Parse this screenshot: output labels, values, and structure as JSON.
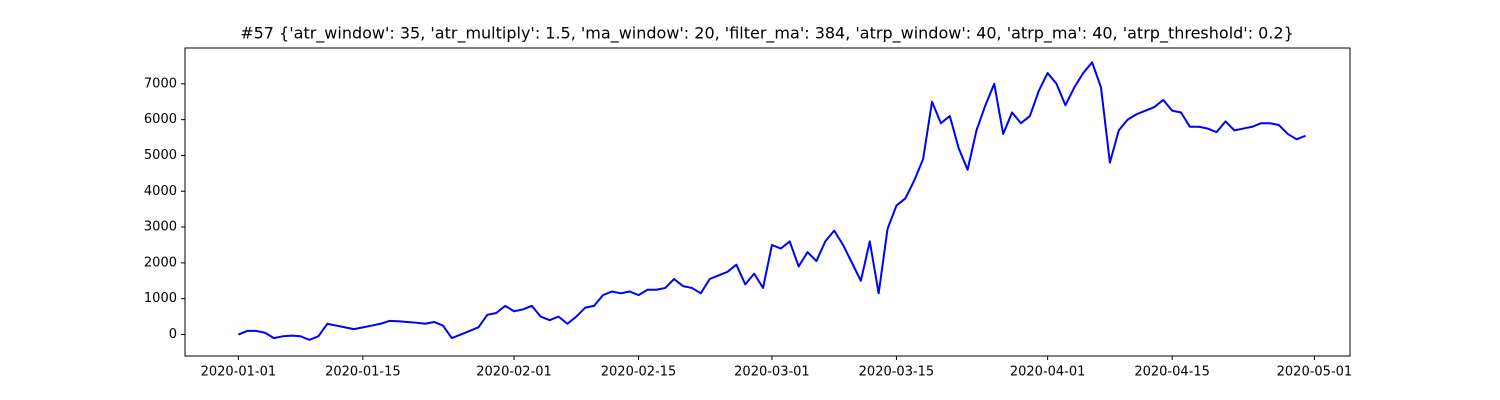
{
  "chart_data": {
    "type": "line",
    "title": "#57 {'atr_window': 35, 'atr_multiply': 1.5, 'ma_window': 20, 'filter_ma': 384, 'atrp_window': 40, 'atrp_ma': 40, 'atrp_threshold': 0.2}",
    "x": [
      "2020-01-01",
      "2020-01-02",
      "2020-01-03",
      "2020-01-04",
      "2020-01-05",
      "2020-01-06",
      "2020-01-07",
      "2020-01-08",
      "2020-01-09",
      "2020-01-10",
      "2020-01-11",
      "2020-01-12",
      "2020-01-13",
      "2020-01-14",
      "2020-01-15",
      "2020-01-16",
      "2020-01-17",
      "2020-01-18",
      "2020-01-19",
      "2020-01-20",
      "2020-01-21",
      "2020-01-22",
      "2020-01-23",
      "2020-01-24",
      "2020-01-25",
      "2020-01-26",
      "2020-01-27",
      "2020-01-28",
      "2020-01-29",
      "2020-01-30",
      "2020-01-31",
      "2020-02-01",
      "2020-02-02",
      "2020-02-03",
      "2020-02-04",
      "2020-02-05",
      "2020-02-06",
      "2020-02-07",
      "2020-02-08",
      "2020-02-09",
      "2020-02-10",
      "2020-02-11",
      "2020-02-12",
      "2020-02-13",
      "2020-02-14",
      "2020-02-15",
      "2020-02-16",
      "2020-02-17",
      "2020-02-18",
      "2020-02-19",
      "2020-02-20",
      "2020-02-21",
      "2020-02-22",
      "2020-02-23",
      "2020-02-24",
      "2020-02-25",
      "2020-02-26",
      "2020-02-27",
      "2020-02-28",
      "2020-02-29",
      "2020-03-01",
      "2020-03-02",
      "2020-03-03",
      "2020-03-04",
      "2020-03-05",
      "2020-03-06",
      "2020-03-07",
      "2020-03-08",
      "2020-03-09",
      "2020-03-10",
      "2020-03-11",
      "2020-03-12",
      "2020-03-13",
      "2020-03-14",
      "2020-03-15",
      "2020-03-16",
      "2020-03-17",
      "2020-03-18",
      "2020-03-19",
      "2020-03-20",
      "2020-03-21",
      "2020-03-22",
      "2020-03-23",
      "2020-03-24",
      "2020-03-25",
      "2020-03-26",
      "2020-03-27",
      "2020-03-28",
      "2020-03-29",
      "2020-03-30",
      "2020-03-31",
      "2020-04-01",
      "2020-04-02",
      "2020-04-03",
      "2020-04-04",
      "2020-04-05",
      "2020-04-06",
      "2020-04-07",
      "2020-04-08",
      "2020-04-09",
      "2020-04-10",
      "2020-04-11",
      "2020-04-12",
      "2020-04-13",
      "2020-04-14",
      "2020-04-15",
      "2020-04-16",
      "2020-04-17",
      "2020-04-18",
      "2020-04-19",
      "2020-04-20",
      "2020-04-21",
      "2020-04-22",
      "2020-04-23",
      "2020-04-24",
      "2020-04-25",
      "2020-04-26",
      "2020-04-27",
      "2020-04-28",
      "2020-04-29",
      "2020-04-30"
    ],
    "series": [
      {
        "color": "#0000ff",
        "values": [
          0,
          100,
          100,
          50,
          -100,
          -50,
          -30,
          -50,
          -150,
          -50,
          300,
          250,
          200,
          150,
          200,
          250,
          300,
          380,
          370,
          350,
          330,
          300,
          350,
          250,
          -100,
          0,
          100,
          200,
          550,
          600,
          800,
          650,
          700,
          800,
          500,
          400,
          500,
          300,
          500,
          750,
          800,
          1100,
          1200,
          1150,
          1200,
          1100,
          1250,
          1250,
          1300,
          1550,
          1350,
          1300,
          1150,
          1550,
          1650,
          1750,
          1950,
          1400,
          1700,
          1300,
          2500,
          2400,
          2600,
          1900,
          2300,
          2050,
          2600,
          2900,
          2500,
          2000,
          1500,
          2600,
          1150,
          2950,
          3600,
          3800,
          4300,
          4900,
          6500,
          5900,
          6100,
          5200,
          4600,
          5700,
          6400,
          7000,
          5600,
          6200,
          5900,
          6100,
          6800,
          7300,
          7000,
          6400,
          6900,
          7300,
          7600,
          6900,
          4800,
          5700,
          6000,
          6150,
          6250,
          6350,
          6550,
          6250,
          6200,
          5800,
          5800,
          5750,
          5650,
          5950,
          5700,
          5750,
          5800,
          5900,
          5900,
          5850,
          5600,
          5450,
          5550
        ]
      }
    ],
    "xlim": [
      "2019-12-26",
      "2020-05-05"
    ],
    "xticks": [
      "2020-01-01",
      "2020-01-15",
      "2020-02-01",
      "2020-02-15",
      "2020-03-01",
      "2020-03-15",
      "2020-04-01",
      "2020-04-15",
      "2020-05-01"
    ],
    "ylim": [
      -600,
      8000
    ],
    "yticks": [
      0,
      1000,
      2000,
      3000,
      4000,
      5000,
      6000,
      7000
    ]
  }
}
